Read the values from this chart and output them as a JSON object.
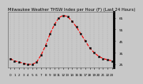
{
  "hours": [
    0,
    1,
    2,
    3,
    4,
    5,
    6,
    7,
    8,
    9,
    10,
    11,
    12,
    13,
    14,
    15,
    16,
    17,
    18,
    19,
    20,
    21,
    22,
    23
  ],
  "values": [
    30,
    28,
    27,
    26,
    25,
    25,
    27,
    33,
    41,
    51,
    59,
    65,
    67,
    66,
    62,
    57,
    51,
    45,
    39,
    35,
    32,
    30,
    29,
    28
  ],
  "line_color": "#ff0000",
  "marker_color": "#000000",
  "grid_color": "#aaaaaa",
  "bg_color": "#c8c8c8",
  "plot_bg": "#c8c8c8",
  "title": "Milwaukee Weather THSW Index per Hour (F) (Last 24 Hours)",
  "title_fontsize": 3.8,
  "title_color": "#000000",
  "ylim": [
    22,
    70
  ],
  "yticks": [
    25,
    35,
    45,
    55,
    65
  ],
  "xlim": [
    -0.5,
    23.5
  ],
  "xtick_step": 1,
  "tick_fontsize": 3.0,
  "line_width": 0.8,
  "marker_size": 1.4,
  "right_bar_width": 1.8
}
